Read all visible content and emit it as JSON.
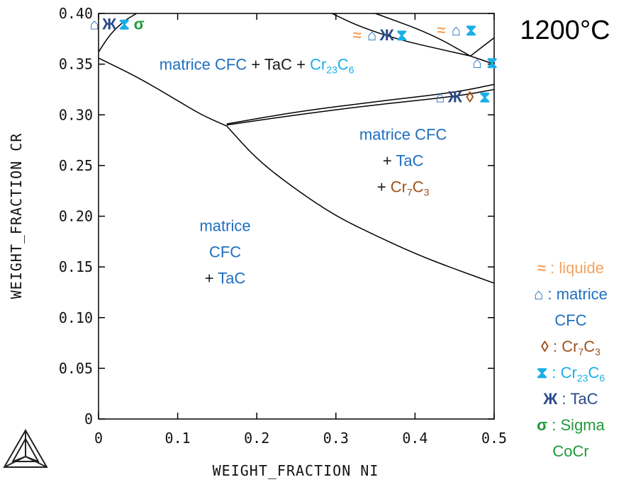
{
  "chart_data": {
    "type": "line",
    "title": "1200°C",
    "xlabel": "WEIGHT_FRACTION NI",
    "ylabel": "WEIGHT_FRACTION CR",
    "xlim": [
      0,
      0.5
    ],
    "ylim": [
      0,
      0.4
    ],
    "x_ticks": [
      "0",
      "0.1",
      "0.2",
      "0.3",
      "0.4",
      "0.5"
    ],
    "y_ticks": [
      "0",
      "0.05",
      "0.10",
      "0.15",
      "0.20",
      "0.25",
      "0.30",
      "0.35",
      "0.40"
    ],
    "grid": false,
    "boundaries": [
      {
        "points": [
          [
            0,
            0.356
          ],
          [
            0.05,
            0.337
          ],
          [
            0.1,
            0.314
          ],
          [
            0.13,
            0.3
          ],
          [
            0.162,
            0.289
          ]
        ]
      },
      {
        "points": [
          [
            0.162,
            0.289
          ],
          [
            0.2,
            0.256
          ],
          [
            0.25,
            0.226
          ],
          [
            0.3,
            0.2
          ],
          [
            0.35,
            0.181
          ],
          [
            0.4,
            0.163
          ],
          [
            0.45,
            0.148
          ],
          [
            0.5,
            0.134
          ]
        ]
      },
      {
        "points": [
          [
            0.162,
            0.29
          ],
          [
            0.25,
            0.3
          ],
          [
            0.35,
            0.31
          ],
          [
            0.45,
            0.318
          ],
          [
            0.5,
            0.325
          ]
        ]
      },
      {
        "points": [
          [
            0.162,
            0.291
          ],
          [
            0.25,
            0.303
          ],
          [
            0.35,
            0.313
          ],
          [
            0.45,
            0.322
          ],
          [
            0.5,
            0.33
          ]
        ]
      },
      {
        "points": [
          [
            0,
            0.362
          ],
          [
            0.015,
            0.38
          ],
          [
            0.033,
            0.393
          ],
          [
            0.048,
            0.4
          ]
        ]
      },
      {
        "points": [
          [
            0.295,
            0.4
          ],
          [
            0.33,
            0.387
          ],
          [
            0.38,
            0.374
          ],
          [
            0.43,
            0.365
          ],
          [
            0.47,
            0.358
          ]
        ]
      },
      {
        "points": [
          [
            0.35,
            0.4
          ],
          [
            0.42,
            0.38
          ],
          [
            0.47,
            0.358
          ]
        ]
      },
      {
        "points": [
          [
            0.47,
            0.358
          ],
          [
            0.5,
            0.35
          ]
        ]
      },
      {
        "points": [
          [
            0.47,
            0.358
          ],
          [
            0.5,
            0.376
          ]
        ]
      }
    ],
    "symbol_groups": [
      {
        "symbols": [
          "house",
          "zhe",
          "hourglass",
          "sigma"
        ],
        "x": 0.023,
        "y": 0.39
      },
      {
        "symbols": [
          "approx",
          "house",
          "zhe",
          "hourglass"
        ],
        "x": 0.355,
        "y": 0.379
      },
      {
        "symbols": [
          "approx",
          "house",
          "hourglass"
        ],
        "x": 0.452,
        "y": 0.384
      },
      {
        "symbols": [
          "house",
          "hourglass"
        ],
        "x": 0.488,
        "y": 0.352
      },
      {
        "symbols": [
          "house",
          "zhe",
          "diamond",
          "hourglass"
        ],
        "x": 0.46,
        "y": 0.318
      }
    ],
    "region_labels": [
      {
        "id": "r1",
        "x": 0.2,
        "y": 0.35,
        "lines": [
          [
            {
              "t": "matrice CFC",
              "c": "blue"
            },
            {
              "t": " + TaC + ",
              "c": "dark"
            },
            {
              "t": " Cr",
              "c": "cyan"
            },
            {
              "t": "23",
              "c": "cyan",
              "sub": true
            },
            {
              "t": "C",
              "c": "cyan"
            },
            {
              "t": "6",
              "c": "cyan",
              "sub": true
            }
          ]
        ]
      },
      {
        "id": "r2",
        "x": 0.385,
        "y": 0.255,
        "lines": [
          [
            {
              "t": "matrice CFC",
              "c": "blue"
            }
          ],
          [
            {
              "t": "+ ",
              "c": "dark"
            },
            {
              "t": "TaC",
              "c": "blue"
            }
          ],
          [
            {
              "t": "+ ",
              "c": "dark"
            },
            {
              "t": "Cr",
              "c": "brown"
            },
            {
              "t": "7",
              "c": "brown",
              "sub": true
            },
            {
              "t": "C",
              "c": "brown"
            },
            {
              "t": "3",
              "c": "brown",
              "sub": true
            }
          ]
        ]
      },
      {
        "id": "r3",
        "x": 0.16,
        "y": 0.165,
        "lines": [
          [
            {
              "t": "matrice",
              "c": "blue"
            }
          ],
          [
            {
              "t": "CFC",
              "c": "blue"
            }
          ],
          [
            {
              "t": "+ ",
              "c": "dark"
            },
            {
              "t": "TaC",
              "c": "blue"
            }
          ]
        ]
      }
    ],
    "legend": {
      "placement": "right",
      "entries": [
        [
          [
            {
              "s": "approx",
              "c": "orange"
            },
            {
              "t": " : liquide",
              "c": "orange"
            }
          ]
        ],
        [
          [
            {
              "s": "house",
              "c": "blue"
            },
            {
              "t": " : matrice",
              "c": "blue"
            }
          ],
          [
            {
              "t": "CFC",
              "c": "blue"
            }
          ]
        ],
        [
          [
            {
              "s": "diamond",
              "c": "brown"
            },
            {
              "t": " : Cr",
              "c": "brown"
            },
            {
              "t": "7",
              "c": "brown",
              "sub": true
            },
            {
              "t": "C",
              "c": "brown"
            },
            {
              "t": "3",
              "c": "brown",
              "sub": true
            }
          ]
        ],
        [
          [
            {
              "s": "hourglass",
              "c": "cyan"
            },
            {
              "t": " : Cr",
              "c": "cyan"
            },
            {
              "t": "23",
              "c": "cyan",
              "sub": true
            },
            {
              "t": "C",
              "c": "cyan"
            },
            {
              "t": "6",
              "c": "cyan",
              "sub": true
            }
          ]
        ],
        [
          [
            {
              "s": "zhe",
              "c": "navy"
            },
            {
              "t": "  : TaC",
              "c": "navy"
            }
          ]
        ],
        [
          [
            {
              "s": "sigma",
              "c": "green"
            },
            {
              "t": " : Sigma",
              "c": "green"
            }
          ],
          [
            {
              "t": "CoCr",
              "c": "green"
            }
          ]
        ]
      ]
    },
    "symbol_glyphs": {
      "approx": "≈",
      "house": "⌂",
      "diamond": "◊",
      "hourglass": "⧗",
      "zhe": "Ж",
      "sigma": "σ"
    },
    "symbol_colors": {
      "approx": "#F4A460",
      "house": "#1F6FC0",
      "diamond": "#A0521C",
      "hourglass": "#1AAEE8",
      "zhe": "#2A4A8A",
      "sigma": "#1E9B3A"
    },
    "colors": {
      "blue": "#1F6FC0",
      "dark": "#1a1a1a",
      "cyan": "#1AAEE8",
      "brown": "#A0521C",
      "orange": "#F4A460",
      "navy": "#2A4A8A",
      "green": "#1E9B3A"
    }
  }
}
